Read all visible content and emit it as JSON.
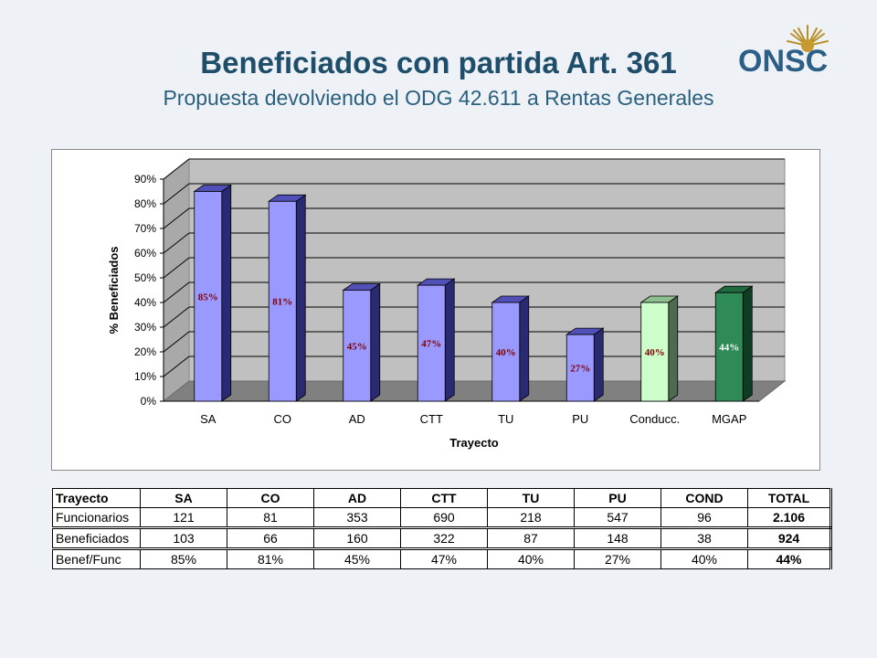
{
  "header": {
    "title": "Beneficiados con partida Art. 361",
    "subtitle": "Propuesta devolviendo el ODG 42.611 a Rentas Generales",
    "logo_text": "ONSC"
  },
  "chart_data": {
    "type": "bar",
    "categories": [
      "SA",
      "CO",
      "AD",
      "CTT",
      "TU",
      "PU",
      "Conducc.",
      "MGAP"
    ],
    "values": [
      85,
      81,
      45,
      47,
      40,
      27,
      40,
      44
    ],
    "data_labels": [
      "85%",
      "81%",
      "45%",
      "47%",
      "40%",
      "27%",
      "40%",
      "44%"
    ],
    "xlabel": "Trayecto",
    "ylabel": "% Beneficiados",
    "ylim": [
      0,
      90
    ],
    "yticks": [
      "0%",
      "10%",
      "20%",
      "30%",
      "40%",
      "50%",
      "60%",
      "70%",
      "80%",
      "90%"
    ],
    "grid": true,
    "colors": {
      "bar_blue": "#9999ff",
      "bar_light_green": "#ccffcc",
      "bar_dark_green": "#2e8b57",
      "label_dark_red": "#800000",
      "label_white": "#ffffff",
      "plot_wall": "#c0c0c0",
      "plot_floor": "#808080"
    },
    "bar_colors": [
      "blue",
      "blue",
      "blue",
      "blue",
      "blue",
      "blue",
      "light_green",
      "dark_green"
    ]
  },
  "table": {
    "headers": [
      "Trayecto",
      "SA",
      "CO",
      "AD",
      "CTT",
      "TU",
      "PU",
      "COND",
      "TOTAL"
    ],
    "rows": [
      [
        "Funcionarios",
        "121",
        "81",
        "353",
        "690",
        "218",
        "547",
        "96",
        "2.106"
      ],
      [
        "Beneficiados",
        "103",
        "66",
        "160",
        "322",
        "87",
        "148",
        "38",
        "924"
      ],
      [
        "Benef/Func",
        "85%",
        "81%",
        "45%",
        "47%",
        "40%",
        "27%",
        "40%",
        "44%"
      ]
    ]
  }
}
